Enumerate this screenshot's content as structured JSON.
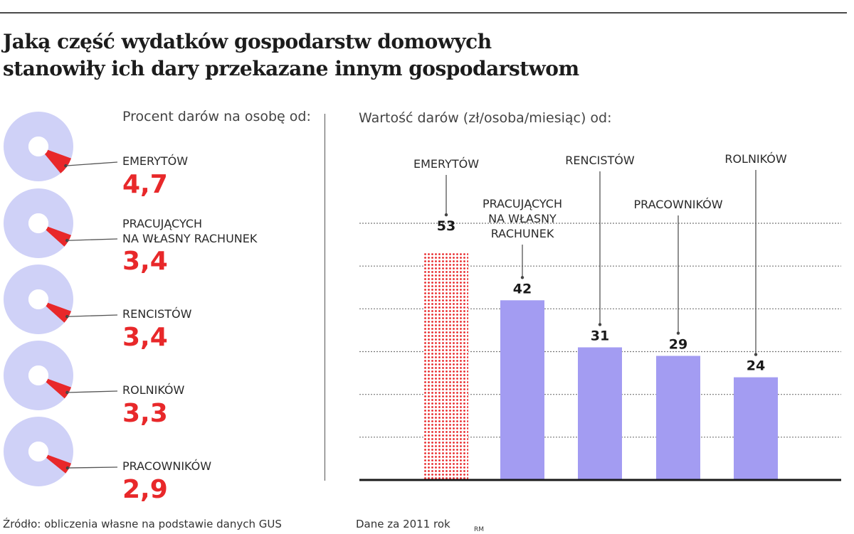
{
  "title_line1": "Jaką część wydatków gospodarstw domowych",
  "title_line2": "stanowiły ich dary przekazane innym gospodarstwom",
  "left_heading": "Procent darów na osobę od:",
  "right_heading": "Wartość darów (zł/osoba/miesiąc) od:",
  "footer_source": "Źródło: obliczenia własne na podstawie danych GUS",
  "footer_year": "Dane za 2011 rok",
  "footer_author": "RM",
  "colors": {
    "donut_ring": "#cfd1f7",
    "accent_red": "#e8282a",
    "bar_purple": "#a39cf2",
    "axis": "#1a1a1a"
  },
  "chart_data": [
    {
      "type": "pie",
      "title": "Procent darów na osobę od:",
      "categories": [
        "EMERYTÓW",
        "PRACUJĄCYCH NA WŁASNY RACHUNEK",
        "RENCISTÓW",
        "ROLNIKÓW",
        "PRACOWNIKÓW"
      ],
      "value_labels": [
        "4,7",
        "3,4",
        "3,4",
        "3,3",
        "2,9"
      ],
      "values": [
        4.7,
        3.4,
        3.4,
        3.3,
        2.9
      ]
    },
    {
      "type": "bar",
      "title": "Wartość darów (zł/osoba/miesiąc) od:",
      "categories": [
        "EMERYTÓW",
        "PRACUJĄCYCH NA WŁASNY RACHUNEK",
        "RENCISTÓW",
        "PRACOWNIKÓW",
        "ROLNIKÓW"
      ],
      "label_lines": [
        [
          "EMERYTÓW"
        ],
        [
          "PRACUJĄCYCH",
          "NA WŁASNY",
          "RACHUNEK"
        ],
        [
          "RENCISTÓW"
        ],
        [
          "PRACOWNIKÓW"
        ],
        [
          "ROLNIKÓW"
        ]
      ],
      "values": [
        53,
        42,
        31,
        29,
        24
      ],
      "highlight_first": true,
      "grid": true,
      "grid_step": 10,
      "ylim": [
        0,
        60
      ]
    }
  ]
}
